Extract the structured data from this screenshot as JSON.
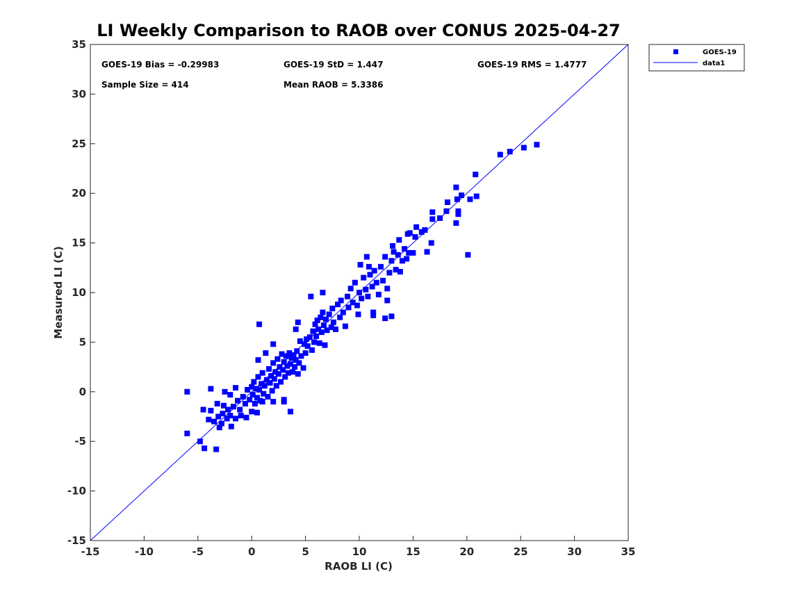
{
  "chart_data": {
    "type": "scatter",
    "title": "LI Weekly Comparison to RAOB over CONUS 2025-04-27",
    "xlabel": "RAOB LI (C)",
    "ylabel": "Measured LI (C)",
    "xlim": [
      -15,
      35
    ],
    "ylim": [
      -15,
      35
    ],
    "xticks": [
      "-15",
      "-10",
      "-5",
      "0",
      "5",
      "10",
      "15",
      "20",
      "25",
      "30",
      "35"
    ],
    "yticks": [
      "-15",
      "-10",
      "-5",
      "0",
      "5",
      "10",
      "15",
      "20",
      "25",
      "30",
      "35"
    ],
    "grid": false,
    "legend_position": "top-right-outside",
    "legend": [
      "GOES-19",
      "data1"
    ],
    "stats": {
      "bias": "GOES-19 Bias = -0.29983",
      "std": "GOES-19 StD = 1.447",
      "rms": "GOES-19 RMS = 1.4777",
      "sample": "Sample Size = 414",
      "mean": "Mean RAOB = 5.3386"
    },
    "series": [
      {
        "name": "GOES-19",
        "color": "#0000ff",
        "marker": "square",
        "points": [
          [
            -6,
            0
          ],
          [
            -6,
            -4.2
          ],
          [
            -4.8,
            -5
          ],
          [
            -4.4,
            -5.7
          ],
          [
            -3.3,
            -5.8
          ],
          [
            -3.8,
            0.3
          ],
          [
            -4.5,
            -1.8
          ],
          [
            -3.8,
            -1.9
          ],
          [
            -4,
            -2.8
          ],
          [
            -3.2,
            -1.2
          ],
          [
            -2.6,
            -1.4
          ],
          [
            -2.5,
            0
          ],
          [
            -2,
            -0.3
          ],
          [
            -1.5,
            0.4
          ],
          [
            -1.9,
            -3.5
          ],
          [
            -3,
            -3.6
          ],
          [
            -2.8,
            -3.2
          ],
          [
            -2.3,
            -2.7
          ],
          [
            -1.5,
            -2.7
          ],
          [
            -1,
            -2.4
          ],
          [
            -0.5,
            -2.6
          ],
          [
            0,
            -2
          ],
          [
            0.5,
            -2.1
          ],
          [
            0.7,
            6.8
          ],
          [
            0.6,
            3.2
          ],
          [
            1.3,
            3.9
          ],
          [
            2,
            4.8
          ],
          [
            1,
            -1
          ],
          [
            2,
            -1
          ],
          [
            3,
            -1
          ],
          [
            3.6,
            -2
          ],
          [
            3,
            -0.8
          ],
          [
            -3.5,
            -3
          ],
          [
            -3.1,
            -2.5
          ],
          [
            -2.7,
            -2.2
          ],
          [
            -2.2,
            -1.8
          ],
          [
            -2,
            -2.4
          ],
          [
            -1.7,
            -1.5
          ],
          [
            -1.3,
            -0.9
          ],
          [
            -1.1,
            -1.8
          ],
          [
            -0.8,
            -0.5
          ],
          [
            -0.6,
            -1.2
          ],
          [
            -0.4,
            0.2
          ],
          [
            -0.2,
            -0.8
          ],
          [
            0,
            0.5
          ],
          [
            0.1,
            -0.3
          ],
          [
            0.2,
            1
          ],
          [
            0.3,
            -1.2
          ],
          [
            0.4,
            0.3
          ],
          [
            0.5,
            -0.6
          ],
          [
            0.6,
            1.5
          ],
          [
            0.7,
            0.2
          ],
          [
            0.8,
            -0.9
          ],
          [
            0.9,
            0.8
          ],
          [
            1,
            1.9
          ],
          [
            1.1,
            -0.2
          ],
          [
            1.2,
            0.6
          ],
          [
            1.4,
            1.2
          ],
          [
            1.5,
            -0.5
          ],
          [
            1.6,
            2.3
          ],
          [
            1.7,
            0.9
          ],
          [
            1.8,
            1.6
          ],
          [
            1.9,
            0.1
          ],
          [
            2,
            2.9
          ],
          [
            2.1,
            1.3
          ],
          [
            2.2,
            2
          ],
          [
            2.3,
            0.6
          ],
          [
            2.4,
            3.3
          ],
          [
            2.5,
            1.8
          ],
          [
            2.6,
            2.5
          ],
          [
            2.7,
            1
          ],
          [
            2.8,
            3.8
          ],
          [
            2.9,
            2.2
          ],
          [
            3,
            3
          ],
          [
            3.1,
            1.5
          ],
          [
            3.2,
            3.6
          ],
          [
            3.3,
            2.6
          ],
          [
            3.4,
            1.9
          ],
          [
            3.5,
            3.9
          ],
          [
            3.6,
            2.8
          ],
          [
            3.7,
            3.4
          ],
          [
            3.8,
            2
          ],
          [
            3.9,
            3.7
          ],
          [
            4,
            2.5
          ],
          [
            4.1,
            3.2
          ],
          [
            4.2,
            4.1
          ],
          [
            4.3,
            1.8
          ],
          [
            4.4,
            2.9
          ],
          [
            4.6,
            3.6
          ],
          [
            4.8,
            2.4
          ],
          [
            5,
            3.9
          ],
          [
            5.1,
            5.3
          ],
          [
            5.2,
            4.6
          ],
          [
            5.4,
            5.5
          ],
          [
            5.6,
            4.2
          ],
          [
            5.7,
            6.1
          ],
          [
            5.8,
            5
          ],
          [
            5.9,
            6.8
          ],
          [
            6,
            5.6
          ],
          [
            6.1,
            7.2
          ],
          [
            6.2,
            6.3
          ],
          [
            6.3,
            4.9
          ],
          [
            6.4,
            7.5
          ],
          [
            6.5,
            6
          ],
          [
            6.6,
            8
          ],
          [
            6.7,
            6.7
          ],
          [
            6.8,
            4.7
          ],
          [
            6.9,
            7.3
          ],
          [
            7,
            6.2
          ],
          [
            7.2,
            7.8
          ],
          [
            7.4,
            6.5
          ],
          [
            7.5,
            8.4
          ],
          [
            7.6,
            7
          ],
          [
            7.8,
            6.3
          ],
          [
            8,
            8.8
          ],
          [
            8.2,
            7.5
          ],
          [
            8.3,
            9.2
          ],
          [
            8.5,
            8
          ],
          [
            8.7,
            6.6
          ],
          [
            8.9,
            9.6
          ],
          [
            9,
            8.5
          ],
          [
            9.2,
            10.4
          ],
          [
            9.4,
            9
          ],
          [
            9.6,
            11
          ],
          [
            9.8,
            8.7
          ],
          [
            10,
            10
          ],
          [
            10.2,
            9.4
          ],
          [
            10.4,
            11.5
          ],
          [
            10.6,
            10.3
          ],
          [
            10.8,
            9.6
          ],
          [
            11,
            11.8
          ],
          [
            11.2,
            10.6
          ],
          [
            11.4,
            12.2
          ],
          [
            11.6,
            11
          ],
          [
            11.8,
            9.8
          ],
          [
            12,
            12.6
          ],
          [
            12.2,
            11.2
          ],
          [
            12.4,
            13.6
          ],
          [
            12.6,
            10.4
          ],
          [
            12.8,
            12
          ],
          [
            13,
            13.2
          ],
          [
            13.2,
            14.1
          ],
          [
            13.4,
            12.3
          ],
          [
            13.6,
            13.8
          ],
          [
            13.8,
            12.1
          ],
          [
            14,
            13.2
          ],
          [
            14.2,
            14.4
          ],
          [
            14.4,
            13.4
          ],
          [
            14.6,
            14
          ],
          [
            15,
            14
          ],
          [
            15.2,
            15.6
          ],
          [
            26.5,
            24.9
          ],
          [
            25.3,
            24.6
          ],
          [
            24,
            24.2
          ],
          [
            23.1,
            23.9
          ],
          [
            20.8,
            21.9
          ],
          [
            20.9,
            19.7
          ],
          [
            20.3,
            19.4
          ],
          [
            19,
            20.6
          ],
          [
            19.1,
            19.4
          ],
          [
            19.5,
            19.8
          ],
          [
            19.2,
            18.2
          ],
          [
            19.2,
            17.9
          ],
          [
            19,
            17
          ],
          [
            20.1,
            13.8
          ],
          [
            18.2,
            19.1
          ],
          [
            18.1,
            18.2
          ],
          [
            17.5,
            17.5
          ],
          [
            16.8,
            18.1
          ],
          [
            16.8,
            17.4
          ],
          [
            16.7,
            15
          ],
          [
            16.3,
            14.1
          ],
          [
            16.1,
            16.3
          ],
          [
            15.8,
            16.1
          ],
          [
            15.3,
            16.6
          ],
          [
            14.5,
            15.9
          ],
          [
            14.7,
            16
          ],
          [
            13.7,
            15.3
          ],
          [
            13.1,
            14.7
          ],
          [
            13,
            7.6
          ],
          [
            12.4,
            7.4
          ],
          [
            12.6,
            9.2
          ],
          [
            11.3,
            8
          ],
          [
            11.3,
            7.7
          ],
          [
            10.9,
            12.6
          ],
          [
            10.7,
            13.6
          ],
          [
            10.1,
            12.8
          ],
          [
            9.9,
            7.8
          ],
          [
            6.6,
            10
          ],
          [
            5.5,
            9.6
          ],
          [
            4.3,
            7
          ],
          [
            4.1,
            6.3
          ],
          [
            4.5,
            5.1
          ],
          [
            4.9,
            4.8
          ]
        ]
      },
      {
        "name": "data1",
        "type": "line",
        "color": "#0000ff",
        "points": [
          [
            -15,
            -15
          ],
          [
            35,
            35
          ]
        ]
      }
    ]
  }
}
